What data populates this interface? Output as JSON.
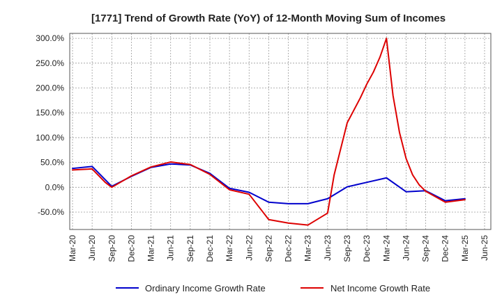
{
  "chart_data": {
    "type": "line",
    "title": "[1771]  Trend of Growth Rate (YoY) of 12-Month Moving Sum of Incomes",
    "xlabel": "",
    "ylabel": "",
    "ylim": [
      -85,
      310
    ],
    "y_ticks": [
      300,
      250,
      200,
      150,
      100,
      50,
      0,
      -50
    ],
    "y_tick_labels": [
      "300.0%",
      "250.0%",
      "200.0%",
      "150.0%",
      "100.0%",
      "50.0%",
      "0.0%",
      "-50.0%"
    ],
    "x_tick_labels": [
      "Mar-20",
      "Jun-20",
      "Sep-20",
      "Dec-20",
      "Mar-21",
      "Jun-21",
      "Sep-21",
      "Dec-21",
      "Mar-22",
      "Jun-22",
      "Sep-22",
      "Dec-22",
      "Mar-23",
      "Jun-23",
      "Sep-23",
      "Dec-23",
      "Mar-24",
      "Jun-24",
      "Sep-24",
      "Dec-24",
      "Mar-25",
      "Jun-25"
    ],
    "grid": true,
    "legend_position": "bottom",
    "series": [
      {
        "name": "Ordinary Income Growth Rate",
        "color": "#0000cc",
        "points": [
          [
            "Mar-20",
            38
          ],
          [
            "Jun-20",
            42
          ],
          [
            "Sep-20",
            2
          ],
          [
            "Dec-20",
            22
          ],
          [
            "Mar-21",
            40
          ],
          [
            "Jun-21",
            47
          ],
          [
            "Sep-21",
            45
          ],
          [
            "Dec-21",
            28
          ],
          [
            "Mar-22",
            -2
          ],
          [
            "Jun-22",
            -10
          ],
          [
            "Sep-22",
            -30
          ],
          [
            "Dec-22",
            -33
          ],
          [
            "Mar-23",
            -33
          ],
          [
            "Jun-23",
            -23
          ],
          [
            "Sep-23",
            1
          ],
          [
            "Dec-23",
            10
          ],
          [
            "Mar-24",
            19
          ],
          [
            "Jun-24",
            -9
          ],
          [
            "Sep-24",
            -7
          ],
          [
            "Dec-24",
            -27
          ],
          [
            "Mar-25",
            -23
          ]
        ]
      },
      {
        "name": "Net Income Growth Rate",
        "color": "#dd0000",
        "points": [
          [
            "Mar-20",
            35
          ],
          [
            "Jun-20",
            37
          ],
          [
            "Aug-20",
            10
          ],
          [
            "Sep-20",
            0
          ],
          [
            "Dec-20",
            23
          ],
          [
            "Mar-21",
            41
          ],
          [
            "Jun-21",
            51
          ],
          [
            "Sep-21",
            46
          ],
          [
            "Dec-21",
            26
          ],
          [
            "Mar-22",
            -5
          ],
          [
            "Jun-22",
            -14
          ],
          [
            "Sep-22",
            -65
          ],
          [
            "Dec-22",
            -72
          ],
          [
            "Mar-23",
            -76
          ],
          [
            "Jun-23",
            -52
          ],
          [
            "Jul-23",
            25
          ],
          [
            "Sep-23",
            130
          ],
          [
            "Oct-23",
            155
          ],
          [
            "Nov-23",
            180
          ],
          [
            "Dec-23",
            208
          ],
          [
            "Jan-24",
            232
          ],
          [
            "Feb-24",
            262
          ],
          [
            "Mar-24",
            300
          ],
          [
            "Apr-24",
            185
          ],
          [
            "May-24",
            110
          ],
          [
            "Jun-24",
            58
          ],
          [
            "Jul-24",
            25
          ],
          [
            "Aug-24",
            5
          ],
          [
            "Sep-24",
            -8
          ],
          [
            "Dec-24",
            -30
          ],
          [
            "Mar-25",
            -25
          ]
        ]
      }
    ]
  }
}
